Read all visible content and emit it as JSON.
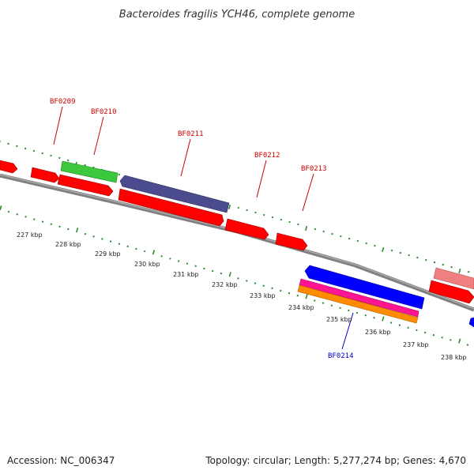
{
  "title": "Bacteroides fragilis YCH46, complete genome",
  "footer": {
    "accession": "Accession: NC_006347",
    "summary": "Topology: circular; Length: 5,277,274 bp; Genes: 4,670"
  },
  "colors": {
    "backbone": "#808080",
    "tick_marks": "#2e8b2e",
    "forward_label": "#cc0000",
    "reverse_label": "#0000cc",
    "gene_red": "#ff0000",
    "gene_green": "#3cc83c",
    "gene_purple": "#4b4b8f",
    "gene_blue": "#0000ff",
    "gene_magenta": "#ff1493",
    "gene_orange": "#ff8c00",
    "gene_pink": "#f08080"
  },
  "scale_labels": [
    "227 kbp",
    "228 kbp",
    "229 kbp",
    "230 kbp",
    "231 kbp",
    "232 kbp",
    "233 kbp",
    "234 kbp",
    "235 kbp",
    "236 kbp",
    "237 kbp",
    "238 kbp"
  ],
  "gene_labels": [
    {
      "text": "BF0209",
      "strand": "forward"
    },
    {
      "text": "BF0210",
      "strand": "forward"
    },
    {
      "text": "BF0211",
      "strand": "forward"
    },
    {
      "text": "BF0212",
      "strand": "forward"
    },
    {
      "text": "BF0213",
      "strand": "forward"
    },
    {
      "text": "BF0214",
      "strand": "reverse"
    }
  ]
}
